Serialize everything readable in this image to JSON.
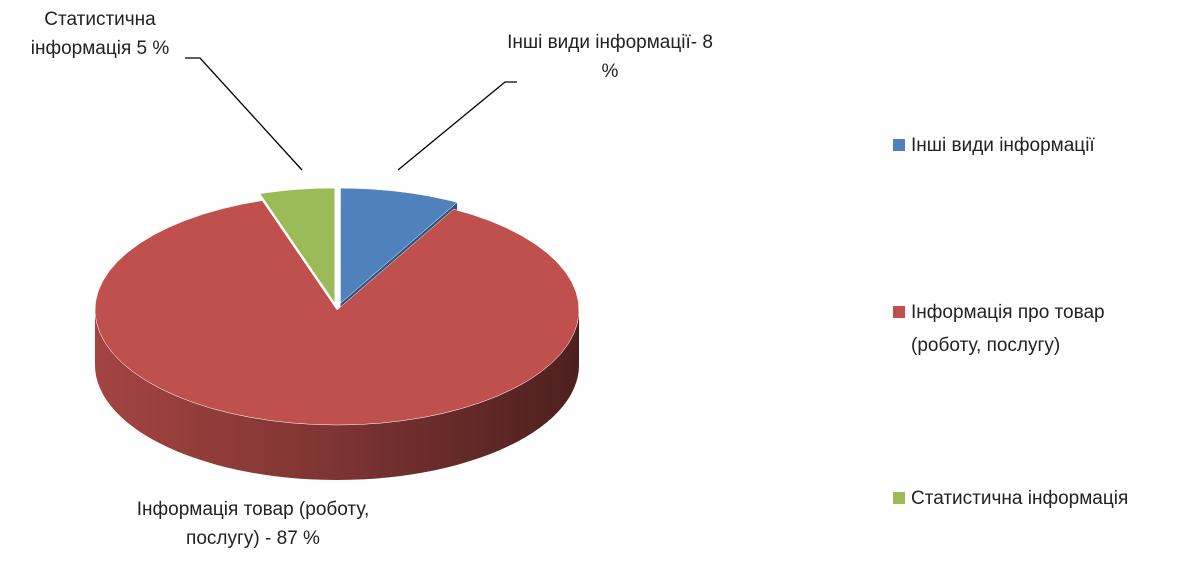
{
  "chart_data": {
    "type": "pie3d",
    "categories": [
      "Інші види інформації",
      "Інформація про товар (роботу, послугу)",
      "Статистична інформація"
    ],
    "values": [
      8,
      87,
      5
    ],
    "value_labels": [
      "Інші види інформації- 8 %",
      "Інформація товар (роботу, послугу) - 87 %",
      "Статистична інформація 5 %"
    ],
    "colors": [
      "#4f81bd",
      "#c0504d",
      "#9bbb59"
    ],
    "exploded": [
      true,
      false,
      true
    ],
    "legend": "right"
  }
}
